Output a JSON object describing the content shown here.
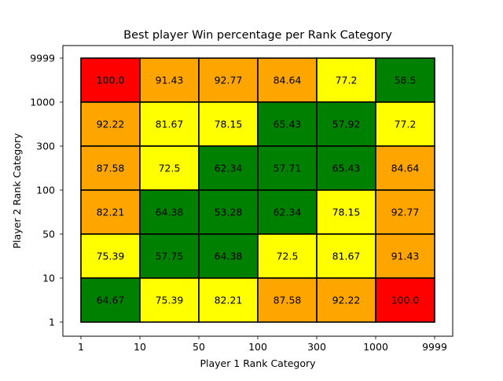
{
  "chart_data": {
    "type": "heatmap",
    "title": "Best player Win percentage per Rank Category",
    "xlabel": "Player 1 Rank Category",
    "ylabel": "Player 2 Rank Category",
    "x_ticks": [
      "1",
      "10",
      "50",
      "100",
      "300",
      "1000",
      "9999"
    ],
    "y_ticks": [
      "1",
      "10",
      "50",
      "100",
      "300",
      "1000",
      "9999"
    ],
    "grid": false,
    "legend": "none",
    "colors": {
      "red": "#ff0000",
      "orange": "#ffa500",
      "yellow": "#ffff00",
      "green": "#008000"
    },
    "rows_top_to_bottom": [
      {
        "y_range": [
          "1000",
          "9999"
        ],
        "values": [
          "100.0",
          "91.43",
          "92.77",
          "84.64",
          "77.2",
          "58.5"
        ],
        "colors": [
          "red",
          "orange",
          "orange",
          "orange",
          "yellow",
          "green"
        ]
      },
      {
        "y_range": [
          "300",
          "1000"
        ],
        "values": [
          "92.22",
          "81.67",
          "78.15",
          "65.43",
          "57.92",
          "77.2"
        ],
        "colors": [
          "orange",
          "yellow",
          "yellow",
          "green",
          "green",
          "yellow"
        ]
      },
      {
        "y_range": [
          "100",
          "300"
        ],
        "values": [
          "87.58",
          "72.5",
          "62.34",
          "57.71",
          "65.43",
          "84.64"
        ],
        "colors": [
          "orange",
          "yellow",
          "green",
          "green",
          "green",
          "orange"
        ]
      },
      {
        "y_range": [
          "50",
          "100"
        ],
        "values": [
          "82.21",
          "64.38",
          "53.28",
          "62.34",
          "78.15",
          "92.77"
        ],
        "colors": [
          "orange",
          "green",
          "green",
          "green",
          "yellow",
          "orange"
        ]
      },
      {
        "y_range": [
          "10",
          "50"
        ],
        "values": [
          "75.39",
          "57.75",
          "64.38",
          "72.5",
          "81.67",
          "91.43"
        ],
        "colors": [
          "yellow",
          "green",
          "green",
          "yellow",
          "yellow",
          "orange"
        ]
      },
      {
        "y_range": [
          "1",
          "10"
        ],
        "values": [
          "64.67",
          "75.39",
          "82.21",
          "87.58",
          "92.22",
          "100.0"
        ],
        "colors": [
          "green",
          "yellow",
          "yellow",
          "orange",
          "orange",
          "red"
        ]
      }
    ]
  }
}
